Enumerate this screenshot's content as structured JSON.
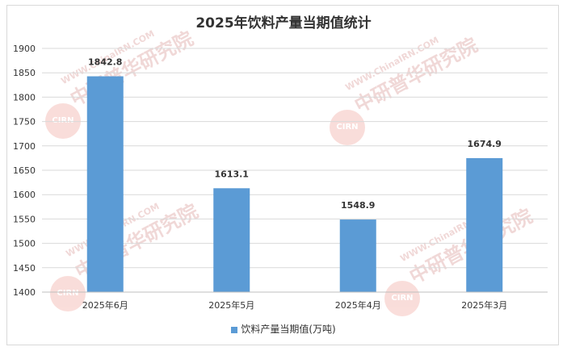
{
  "chart_data": {
    "type": "bar",
    "title": "2025年饮料产量当期值统计",
    "categories": [
      "2025年6月",
      "2025年5月",
      "2025年4月",
      "2025年3月"
    ],
    "series": [
      {
        "name": "饮料产量当期值(万吨)",
        "values": [
          1842.8,
          1613.1,
          1548.9,
          1674.9
        ],
        "color": "#5b9bd5"
      }
    ],
    "data_labels": [
      "1842.8",
      "1613.1",
      "1548.9",
      "1674.9"
    ],
    "y_ticks": [
      "1400",
      "1450",
      "1500",
      "1550",
      "1600",
      "1650",
      "1700",
      "1750",
      "1800",
      "1850",
      "1900"
    ],
    "ylim": [
      1400,
      1900
    ],
    "grid": true,
    "legend_position": "bottom"
  },
  "watermark": {
    "logo": "CIRN",
    "url": "WWW.ChinaIRN.COM",
    "name": "中研普华研究院"
  }
}
